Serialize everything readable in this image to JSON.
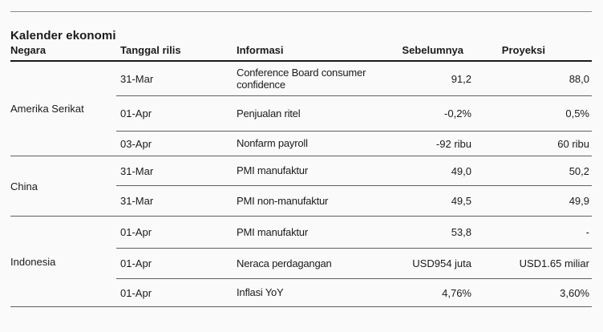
{
  "title": "Kalender ekonomi",
  "colors": {
    "background": "#fafafa",
    "text": "#1b1b1b",
    "rule_strong": "#191919",
    "rule_thin": "#5f5f5f",
    "rule_top": "#8a8a8a"
  },
  "table": {
    "headers": {
      "negara": "Negara",
      "tanggal": "Tanggal rilis",
      "informasi": "Informasi",
      "sebelumnya": "Sebelumnya",
      "proyeksi": "Proyeksi"
    },
    "groups": [
      {
        "negara": "Amerika Serikat",
        "rows": [
          {
            "tanggal": "31-Mar",
            "informasi": "Conference Board consumer confidence",
            "sebelumnya": "91,2",
            "proyeksi": "88,0"
          },
          {
            "tanggal": "01-Apr",
            "informasi": "Penjualan ritel",
            "sebelumnya": "-0,2%",
            "proyeksi": "0,5%"
          },
          {
            "tanggal": "03-Apr",
            "informasi": "Nonfarm payroll",
            "sebelumnya": "-92 ribu",
            "proyeksi": "60 ribu"
          }
        ]
      },
      {
        "negara": "China",
        "rows": [
          {
            "tanggal": "31-Mar",
            "informasi": "PMI manufaktur",
            "sebelumnya": "49,0",
            "proyeksi": "50,2"
          },
          {
            "tanggal": "31-Mar",
            "informasi": "PMI non-manufaktur",
            "sebelumnya": "49,5",
            "proyeksi": "49,9"
          }
        ]
      },
      {
        "negara": "Indonesia",
        "rows": [
          {
            "tanggal": "01-Apr",
            "informasi": "PMI manufaktur",
            "sebelumnya": "53,8",
            "proyeksi": "-"
          },
          {
            "tanggal": "01-Apr",
            "informasi": "Neraca perdagangan",
            "sebelumnya": "USD954 juta",
            "proyeksi": "USD1.65 miliar"
          },
          {
            "tanggal": "01-Apr",
            "informasi": "Inflasi YoY",
            "sebelumnya": "4,76%",
            "proyeksi": "3,60%"
          }
        ]
      }
    ]
  },
  "chart_data": {
    "type": "table",
    "title": "Kalender ekonomi",
    "columns": [
      "Negara",
      "Tanggal rilis",
      "Informasi",
      "Sebelumnya",
      "Proyeksi"
    ],
    "rows": [
      [
        "Amerika Serikat",
        "31-Mar",
        "Conference Board consumer confidence",
        "91,2",
        "88,0"
      ],
      [
        "Amerika Serikat",
        "01-Apr",
        "Penjualan ritel",
        "-0,2%",
        "0,5%"
      ],
      [
        "Amerika Serikat",
        "03-Apr",
        "Nonfarm payroll",
        "-92 ribu",
        "60 ribu"
      ],
      [
        "China",
        "31-Mar",
        "PMI manufaktur",
        "49,0",
        "50,2"
      ],
      [
        "China",
        "31-Mar",
        "PMI non-manufaktur",
        "49,5",
        "49,9"
      ],
      [
        "Indonesia",
        "01-Apr",
        "PMI manufaktur",
        "53,8",
        "-"
      ],
      [
        "Indonesia",
        "01-Apr",
        "Neraca perdagangan",
        "USD954 juta",
        "USD1.65 miliar"
      ],
      [
        "Indonesia",
        "01-Apr",
        "Inflasi YoY",
        "4,76%",
        "3,60%"
      ]
    ]
  }
}
